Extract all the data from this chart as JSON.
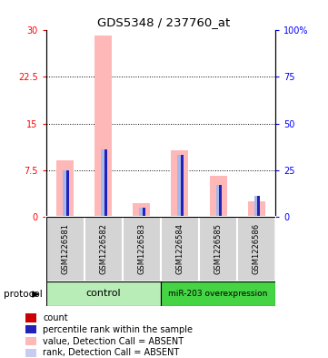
{
  "title": "GDS5348 / 237760_at",
  "samples": [
    "GSM1226581",
    "GSM1226582",
    "GSM1226583",
    "GSM1226584",
    "GSM1226585",
    "GSM1226586"
  ],
  "pink_values": [
    9.0,
    29.2,
    2.1,
    10.7,
    6.5,
    2.5
  ],
  "blue_values_pct": [
    25.0,
    36.0,
    5.0,
    33.0,
    17.0,
    11.0
  ],
  "red_dot_values": [
    0.5,
    0.5,
    0.5,
    0.5,
    0.5,
    0.5
  ],
  "blue_dot_values_pct": [
    25.0,
    36.0,
    5.0,
    33.0,
    17.0,
    11.0
  ],
  "ylim_left": [
    0,
    30
  ],
  "ylim_right": [
    0,
    100
  ],
  "yticks_left": [
    0,
    7.5,
    15,
    22.5,
    30
  ],
  "yticks_right": [
    0,
    25,
    50,
    75,
    100
  ],
  "ytick_labels_left": [
    "0",
    "7.5",
    "15",
    "22.5",
    "30"
  ],
  "ytick_labels_right": [
    "0",
    "25",
    "50",
    "75",
    "100%"
  ],
  "control_label": "control",
  "mirna_label": "miR-203 overexpression",
  "protocol_label": "protocol",
  "control_color": "#b8edb8",
  "mirna_color": "#44d444",
  "gray_color": "#d4d4d4",
  "pink_color": "#ffb8b8",
  "blue_bar_color": "#a8b8e8",
  "red_dot_color": "#cc0000",
  "blue_dot_color": "#2222bb",
  "legend_items": [
    {
      "color": "#cc0000",
      "label": "count"
    },
    {
      "color": "#2222bb",
      "label": "percentile rank within the sample"
    },
    {
      "color": "#ffb8b8",
      "label": "value, Detection Call = ABSENT"
    },
    {
      "color": "#c8ccf0",
      "label": "rank, Detection Call = ABSENT"
    }
  ],
  "plot_bg": "#ffffff",
  "figsize": [
    3.61,
    3.93
  ],
  "dpi": 100
}
